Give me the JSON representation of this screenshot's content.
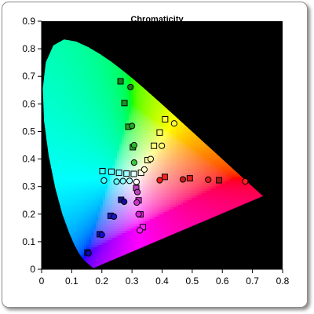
{
  "chart_data": {
    "type": "scatter",
    "title": "Chromaticity",
    "xlabel": "",
    "ylabel": "",
    "xlim": [
      0,
      0.8
    ],
    "ylim": [
      0,
      0.9
    ],
    "x_ticks": [
      "0",
      "0.1",
      "0.2",
      "0.3",
      "0.4",
      "0.5",
      "0.6",
      "0.7",
      "0.8"
    ],
    "y_ticks": [
      "0",
      "0.1",
      "0.2",
      "0.3",
      "0.4",
      "0.5",
      "0.6",
      "0.7",
      "0.8",
      "0.9"
    ],
    "grid": false,
    "plot_background": "#000000",
    "series": [
      {
        "marker": "square",
        "points": [
          {
            "x": 0.262,
            "y": 0.682,
            "color": "#1a7a1a"
          },
          {
            "x": 0.275,
            "y": 0.603,
            "color": "#1f8f1f"
          },
          {
            "x": 0.288,
            "y": 0.517,
            "color": "#25a525"
          },
          {
            "x": 0.303,
            "y": 0.443,
            "color": "#2fb82f"
          },
          {
            "x": 0.41,
            "y": 0.544,
            "color": "#ffff40"
          },
          {
            "x": 0.392,
            "y": 0.496,
            "color": "#ffff60"
          },
          {
            "x": 0.373,
            "y": 0.448,
            "color": "#ffff80"
          },
          {
            "x": 0.352,
            "y": 0.396,
            "color": "#ffffa0"
          },
          {
            "x": 0.33,
            "y": 0.35,
            "color": "#ffffe0"
          },
          {
            "x": 0.202,
            "y": 0.356,
            "color": "#40ffff"
          },
          {
            "x": 0.232,
            "y": 0.354,
            "color": "#60ffff"
          },
          {
            "x": 0.257,
            "y": 0.35,
            "color": "#80ffff"
          },
          {
            "x": 0.282,
            "y": 0.347,
            "color": "#a0ffff"
          },
          {
            "x": 0.306,
            "y": 0.346,
            "color": "#e0ffff"
          },
          {
            "x": 0.492,
            "y": 0.33,
            "color": "#e02020"
          },
          {
            "x": 0.409,
            "y": 0.335,
            "color": "#ff2020"
          },
          {
            "x": 0.589,
            "y": 0.323,
            "color": "#b01818"
          },
          {
            "x": 0.314,
            "y": 0.295,
            "color": "#c040c0"
          },
          {
            "x": 0.322,
            "y": 0.25,
            "color": "#d030d0"
          },
          {
            "x": 0.328,
            "y": 0.199,
            "color": "#e020e0"
          },
          {
            "x": 0.336,
            "y": 0.153,
            "color": "#ff20ff"
          },
          {
            "x": 0.264,
            "y": 0.252,
            "color": "#1010a0"
          },
          {
            "x": 0.229,
            "y": 0.194,
            "color": "#1818c0"
          },
          {
            "x": 0.193,
            "y": 0.127,
            "color": "#1010d0"
          },
          {
            "x": 0.152,
            "y": 0.061,
            "color": "#0808b0"
          }
        ]
      },
      {
        "marker": "circle",
        "points": [
          {
            "x": 0.295,
            "y": 0.661,
            "color": "#1a7a1a"
          },
          {
            "x": 0.3,
            "y": 0.52,
            "color": "#25a525"
          },
          {
            "x": 0.307,
            "y": 0.45,
            "color": "#2fb82f"
          },
          {
            "x": 0.307,
            "y": 0.387,
            "color": "#3fc83f"
          },
          {
            "x": 0.44,
            "y": 0.529,
            "color": "#ffff40"
          },
          {
            "x": 0.399,
            "y": 0.448,
            "color": "#ffff70"
          },
          {
            "x": 0.362,
            "y": 0.4,
            "color": "#ffffa0"
          },
          {
            "x": 0.341,
            "y": 0.362,
            "color": "#ffffd0"
          },
          {
            "x": 0.315,
            "y": 0.317,
            "color": "#ffffff"
          },
          {
            "x": 0.207,
            "y": 0.322,
            "color": "#40ffff"
          },
          {
            "x": 0.249,
            "y": 0.318,
            "color": "#60ffff"
          },
          {
            "x": 0.27,
            "y": 0.32,
            "color": "#80ffff"
          },
          {
            "x": 0.292,
            "y": 0.321,
            "color": "#b0ffff"
          },
          {
            "x": 0.676,
            "y": 0.319,
            "color": "#ff2020"
          },
          {
            "x": 0.553,
            "y": 0.325,
            "color": "#e02020"
          },
          {
            "x": 0.469,
            "y": 0.326,
            "color": "#d01818"
          },
          {
            "x": 0.392,
            "y": 0.323,
            "color": "#ff1818"
          },
          {
            "x": 0.318,
            "y": 0.28,
            "color": "#c040c0"
          },
          {
            "x": 0.316,
            "y": 0.242,
            "color": "#d030d0"
          },
          {
            "x": 0.322,
            "y": 0.2,
            "color": "#e020e0"
          },
          {
            "x": 0.326,
            "y": 0.141,
            "color": "#ff20ff"
          },
          {
            "x": 0.274,
            "y": 0.245,
            "color": "#1010a0"
          },
          {
            "x": 0.24,
            "y": 0.191,
            "color": "#1818c0"
          },
          {
            "x": 0.2,
            "y": 0.125,
            "color": "#1010d0"
          },
          {
            "x": 0.156,
            "y": 0.058,
            "color": "#0808b0"
          }
        ]
      }
    ]
  }
}
